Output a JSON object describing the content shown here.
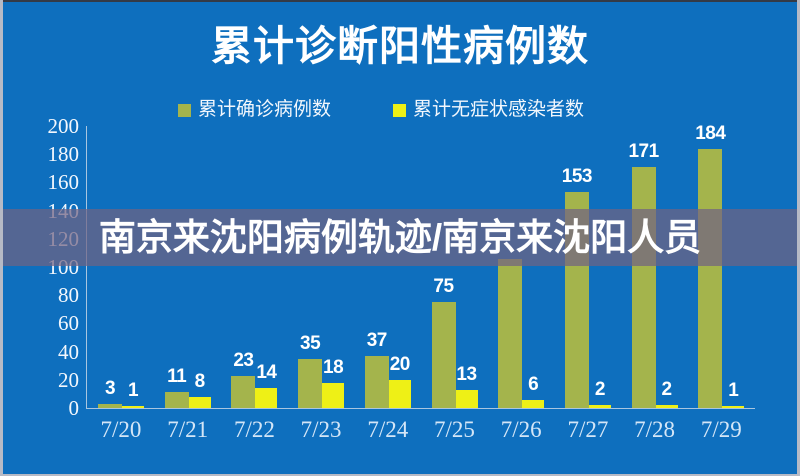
{
  "page": {
    "title": "累计诊断阳性病例数",
    "overlay_text": "南京来沈阳病例轨迹/南京来沈阳人员",
    "background_color": "#0e6fbe",
    "overlay_band_color": "rgba(112,98,130,0.72)"
  },
  "legend": {
    "items": [
      {
        "label": "累计确诊病例数",
        "color": "#a4b44c"
      },
      {
        "label": "累计无症状感染者数",
        "color": "#eef016"
      }
    ]
  },
  "chart_data": {
    "type": "bar",
    "title": "累计诊断阳性病例数",
    "categories": [
      "7/20",
      "7/21",
      "7/22",
      "7/23",
      "7/24",
      "7/25",
      "7/26",
      "7/27",
      "7/28",
      "7/29"
    ],
    "series": [
      {
        "name": "累计确诊病例数",
        "color": "#a4b44c",
        "values": [
          3,
          11,
          23,
          35,
          37,
          75,
          106,
          153,
          171,
          184
        ],
        "hidden_label_indexes": [
          6
        ]
      },
      {
        "name": "累计无症状感染者数",
        "color": "#eef016",
        "values": [
          1,
          8,
          14,
          18,
          20,
          13,
          6,
          2,
          2,
          1
        ],
        "hidden_label_indexes": []
      }
    ],
    "ylim": [
      0,
      200
    ],
    "ytick_step": 20,
    "xlabel": "",
    "ylabel": "",
    "legend_position": "top",
    "grid": false,
    "axis_color": "#a9c6e0",
    "tick_label_color": "#f2f7fd",
    "bar_label_color": "#ffffff"
  }
}
